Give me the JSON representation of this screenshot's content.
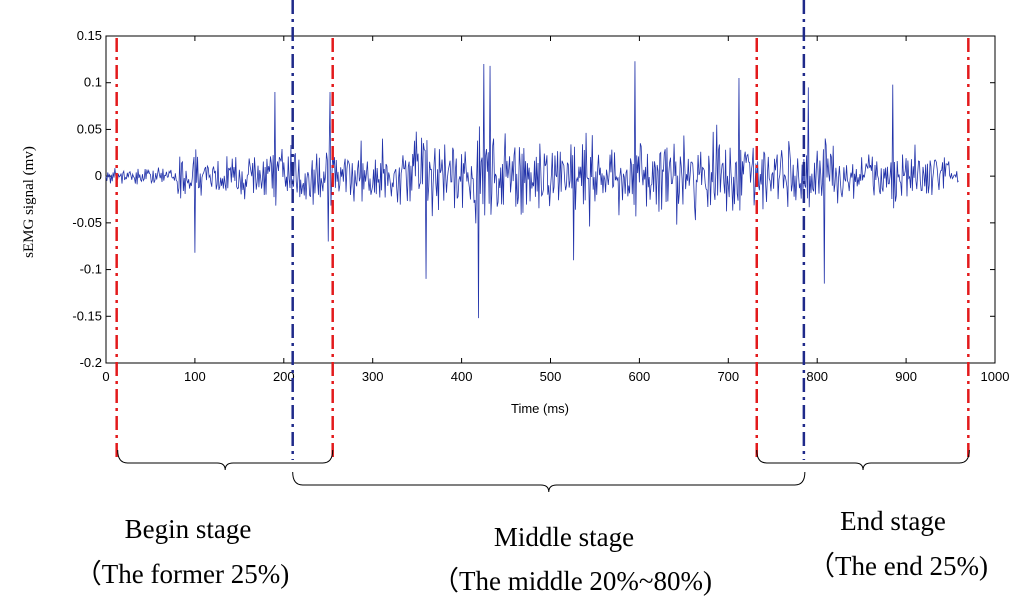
{
  "chart_data": {
    "type": "line",
    "title": "",
    "xlabel": "Time (ms)",
    "ylabel": "sEMG signal (mv)",
    "xlim": [
      0,
      1000
    ],
    "ylim": [
      -0.2,
      0.15
    ],
    "xticks": [
      0,
      100,
      200,
      300,
      400,
      500,
      600,
      700,
      800,
      900,
      1000
    ],
    "yticks": [
      -0.2,
      -0.15,
      -0.1,
      -0.05,
      0,
      0.05,
      0.1,
      0.15
    ],
    "ytick_labels": [
      "-0.2",
      "-0.15",
      "-0.1",
      "-0.05",
      "0",
      "0.05",
      "0.1",
      "0.15"
    ],
    "grid": false,
    "series": [
      {
        "name": "sEMG signal",
        "color": "#2233aa",
        "n_samples": 960,
        "peaks": [
          {
            "x": 100,
            "y": -0.082
          },
          {
            "x": 190,
            "y": 0.09
          },
          {
            "x": 252,
            "y": 0.09
          },
          {
            "x": 250,
            "y": -0.07
          },
          {
            "x": 360,
            "y": -0.11
          },
          {
            "x": 419,
            "y": -0.152
          },
          {
            "x": 425,
            "y": 0.12
          },
          {
            "x": 432,
            "y": 0.118
          },
          {
            "x": 595,
            "y": 0.123
          },
          {
            "x": 526,
            "y": -0.09
          },
          {
            "x": 712,
            "y": 0.105
          },
          {
            "x": 790,
            "y": 0.095
          },
          {
            "x": 808,
            "y": -0.115
          },
          {
            "x": 885,
            "y": 0.098
          }
        ]
      }
    ],
    "markers": [
      {
        "name": "red-dashdot",
        "x": 12,
        "color": "#e31a1c"
      },
      {
        "name": "blue-dashdot",
        "x": 210,
        "color": "#1f2a8a"
      },
      {
        "name": "red-dashdot",
        "x": 255,
        "color": "#e31a1c"
      },
      {
        "name": "red-dashdot",
        "x": 732,
        "color": "#e31a1c"
      },
      {
        "name": "blue-dashdot",
        "x": 785,
        "color": "#1f2a8a"
      },
      {
        "name": "red-dashdot",
        "x": 970,
        "color": "#e31a1c"
      }
    ],
    "stages": [
      {
        "name": "Begin stage",
        "range": "(The former 25%)",
        "x_from": 12,
        "x_to": 255
      },
      {
        "name": "Middle stage",
        "range": "(The middle 20%~80%)",
        "x_from": 210,
        "x_to": 785
      },
      {
        "name": "End stage",
        "range": "(The end 25%)",
        "x_from": 732,
        "x_to": 970
      }
    ]
  },
  "stages_text": {
    "begin_title": "Begin stage",
    "begin_range": "（The former 25%)",
    "middle_title": "Middle stage",
    "middle_range": "（The middle 20%~80%)",
    "end_title": "End stage",
    "end_range": "（The end 25%)"
  }
}
